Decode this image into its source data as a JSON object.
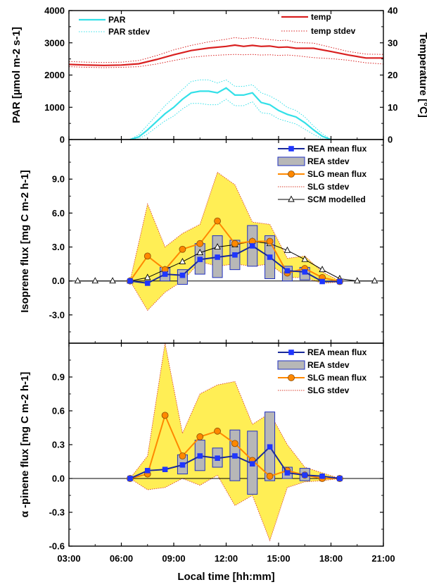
{
  "chart_data": {
    "type": "line",
    "xlabel": "Local time [hh:mm]",
    "xlim": [
      3,
      21
    ],
    "xticks": [
      "03:00",
      "06:00",
      "09:00",
      "12:00",
      "15:00",
      "18:00",
      "21:00"
    ],
    "panels": [
      {
        "id": "par-temperature",
        "ylabel_left": "PAR [µmol m-2 s-1]",
        "ylabel_right": "Temperature [°C]",
        "ylim": [
          0,
          4000
        ],
        "yticks": [
          "0",
          "1000",
          "2000",
          "3000",
          "4000"
        ],
        "y2lim": [
          0,
          40
        ],
        "y2ticks": [
          "0",
          "10",
          "20",
          "30",
          "40"
        ],
        "colors": {
          "par": "#33e0e8",
          "temp": "#d92020"
        },
        "legend": {
          "par": "PAR",
          "par_stdev": "PAR stdev",
          "temp": "temp",
          "temp_stdev": "temp stdev"
        },
        "par_x": [
          6.5,
          7,
          7.5,
          8,
          8.5,
          9,
          9.5,
          10,
          10.5,
          11,
          11.5,
          12,
          12.5,
          13,
          13.5,
          14,
          14.5,
          15,
          15.5,
          16,
          16.5,
          17,
          17.5,
          18
        ],
        "par_y": [
          0,
          80,
          300,
          550,
          800,
          1000,
          1250,
          1450,
          1500,
          1500,
          1450,
          1600,
          1380,
          1380,
          1450,
          1150,
          1080,
          900,
          780,
          700,
          520,
          300,
          100,
          0
        ],
        "par_upper": [
          0,
          150,
          450,
          750,
          1050,
          1300,
          1550,
          1800,
          1850,
          1850,
          1750,
          1850,
          1650,
          1650,
          1700,
          1450,
          1350,
          1200,
          1000,
          900,
          700,
          420,
          180,
          0
        ],
        "par_lower": [
          0,
          20,
          170,
          380,
          580,
          730,
          950,
          1120,
          1120,
          1080,
          1080,
          1250,
          1050,
          1050,
          1170,
          830,
          800,
          640,
          560,
          480,
          320,
          160,
          20,
          0
        ],
        "temp_x": [
          3,
          4,
          5,
          6,
          7,
          8,
          9,
          10,
          11,
          12,
          12.5,
          13,
          13.5,
          14,
          14.5,
          15,
          15.5,
          16,
          17,
          18,
          19,
          20,
          21
        ],
        "temp_y": [
          23.3,
          23.1,
          23.0,
          23.1,
          23.5,
          24.8,
          26.3,
          27.6,
          28.4,
          28.9,
          29.3,
          28.9,
          29.2,
          28.9,
          29.0,
          28.6,
          28.7,
          28.3,
          28.3,
          27.3,
          26.2,
          25.3,
          25.3
        ],
        "temp_upper": [
          24.2,
          24.0,
          23.9,
          24.0,
          24.5,
          26.0,
          27.8,
          29.2,
          30.3,
          31.1,
          31.6,
          31.3,
          31.6,
          31.3,
          31.0,
          30.7,
          30.8,
          30.1,
          29.9,
          28.6,
          27.3,
          26.5,
          26.4
        ],
        "temp_lower": [
          22.6,
          22.4,
          22.3,
          22.4,
          22.6,
          23.4,
          24.5,
          25.5,
          26.0,
          26.3,
          26.4,
          26.3,
          26.4,
          26.2,
          26.3,
          26.1,
          26.2,
          26.0,
          25.4,
          25.1,
          24.6,
          23.8,
          23.4
        ]
      },
      {
        "id": "isoprene",
        "ylabel": "Isoprene flux [mg C m-2 h-1]",
        "ylim": [
          -5.5,
          12.5
        ],
        "yticks": [
          -3.0,
          0.0,
          3.0,
          6.0,
          9.0
        ],
        "ytick_labels": [
          "-3.0",
          "0.0",
          "3.0",
          "6.0",
          "9.0"
        ],
        "colors": {
          "rea": "#1a2a99",
          "rea_marker": "#1f36ff",
          "slg": "#ff8800",
          "slg_band": "#ffee55",
          "slg_edge": "#d94030",
          "box": "#b7b7b7"
        },
        "legend": [
          "REA mean flux",
          "REA stdev",
          "SLG mean flux",
          "SLG stdev",
          "SCM modelled"
        ],
        "rea_x": [
          6.5,
          7.5,
          8.5,
          9.5,
          10.5,
          11.5,
          12.5,
          13.5,
          14.5,
          15.5,
          16.5,
          17.5,
          18.5
        ],
        "rea_mean": [
          0.0,
          -0.2,
          0.6,
          0.5,
          1.9,
          2.1,
          2.3,
          3.1,
          2.1,
          0.9,
          0.8,
          -0.05,
          -0.05
        ],
        "rea_box_low": [
          null,
          null,
          0.0,
          -0.3,
          0.6,
          0.3,
          1.0,
          1.3,
          0.2,
          0.0,
          0.1,
          null,
          null
        ],
        "rea_box_high": [
          null,
          null,
          1.2,
          1.0,
          3.3,
          4.0,
          3.6,
          4.9,
          4.0,
          1.3,
          1.2,
          null,
          null
        ],
        "slg_x": [
          6.5,
          7.5,
          8.5,
          9.5,
          10.5,
          11.5,
          12.5,
          13.5,
          14.5,
          15.5,
          16.5,
          17.5,
          18.5
        ],
        "slg_mean": [
          0.0,
          2.2,
          1.0,
          2.8,
          3.3,
          5.3,
          3.3,
          3.5,
          3.5,
          0.7,
          1.1,
          0.3,
          -0.05
        ],
        "slg_upper": [
          0.0,
          6.8,
          3.0,
          4.2,
          5.0,
          9.6,
          8.5,
          5.2,
          5.0,
          2.0,
          2.2,
          0.8,
          0.0
        ],
        "slg_lower": [
          0.0,
          -2.6,
          -1.0,
          0.0,
          1.7,
          1.3,
          1.5,
          1.3,
          1.5,
          0.3,
          0.3,
          -0.2,
          -0.1
        ],
        "scm_x": [
          3.5,
          4.5,
          5.5,
          6.5,
          7.5,
          8.5,
          9.5,
          10.5,
          11.5,
          12.5,
          13.5,
          14.5,
          15.5,
          16.5,
          17.5,
          18.5,
          19.5,
          20.5
        ],
        "scm_y": [
          0,
          0,
          0,
          0,
          0.3,
          1.0,
          1.7,
          2.5,
          3.0,
          3.2,
          3.5,
          3.3,
          2.7,
          1.9,
          1.0,
          0.2,
          0,
          0
        ]
      },
      {
        "id": "alpha-pinene",
        "ylabel": "α -pinene flux [mg C m-2 h-1]",
        "ylim": [
          -0.6,
          1.2
        ],
        "yticks": [
          -0.6,
          -0.3,
          0.0,
          0.3,
          0.6,
          0.9
        ],
        "ytick_labels": [
          "-0.6",
          "-0.3",
          "0.0",
          "0.3",
          "0.6",
          "0.9"
        ],
        "colors": {
          "rea": "#1a2a99",
          "rea_marker": "#1f36ff",
          "slg": "#ff8800",
          "slg_band": "#ffee55",
          "slg_edge": "#d94030",
          "box": "#b7b7b7"
        },
        "legend": [
          "REA mean flux",
          "REA stdev",
          "SLG mean flux",
          "SLG stdev"
        ],
        "rea_x": [
          6.5,
          7.5,
          8.5,
          9.5,
          10.5,
          11.5,
          12.5,
          13.5,
          14.5,
          15.5,
          16.5,
          17.5,
          18.5
        ],
        "rea_mean": [
          0.0,
          0.07,
          0.08,
          0.12,
          0.2,
          0.18,
          0.2,
          0.13,
          0.28,
          0.05,
          0.03,
          0.02,
          0.0
        ],
        "rea_box_low": [
          null,
          null,
          null,
          0.04,
          0.07,
          0.1,
          -0.02,
          -0.14,
          -0.02,
          0.0,
          -0.02,
          null,
          null
        ],
        "rea_box_high": [
          null,
          null,
          null,
          0.21,
          0.34,
          0.27,
          0.43,
          0.42,
          0.59,
          0.1,
          0.09,
          null,
          null
        ],
        "slg_x": [
          6.5,
          7.5,
          8.5,
          9.5,
          10.5,
          11.5,
          12.5,
          13.5,
          14.5,
          15.5,
          16.5,
          17.5,
          18.5
        ],
        "slg_mean": [
          0.0,
          0.04,
          0.56,
          0.2,
          0.37,
          0.42,
          0.31,
          0.16,
          0.02,
          0.07,
          0.03,
          0.0,
          0.0
        ],
        "slg_upper": [
          0.0,
          0.2,
          1.2,
          0.4,
          0.75,
          0.83,
          0.86,
          0.48,
          0.58,
          0.3,
          0.1,
          0.05,
          0.0
        ],
        "slg_lower": [
          0.0,
          -0.1,
          -0.08,
          0.0,
          -0.06,
          0.03,
          -0.24,
          -0.15,
          -0.55,
          -0.08,
          -0.03,
          -0.02,
          0.0
        ]
      }
    ]
  }
}
